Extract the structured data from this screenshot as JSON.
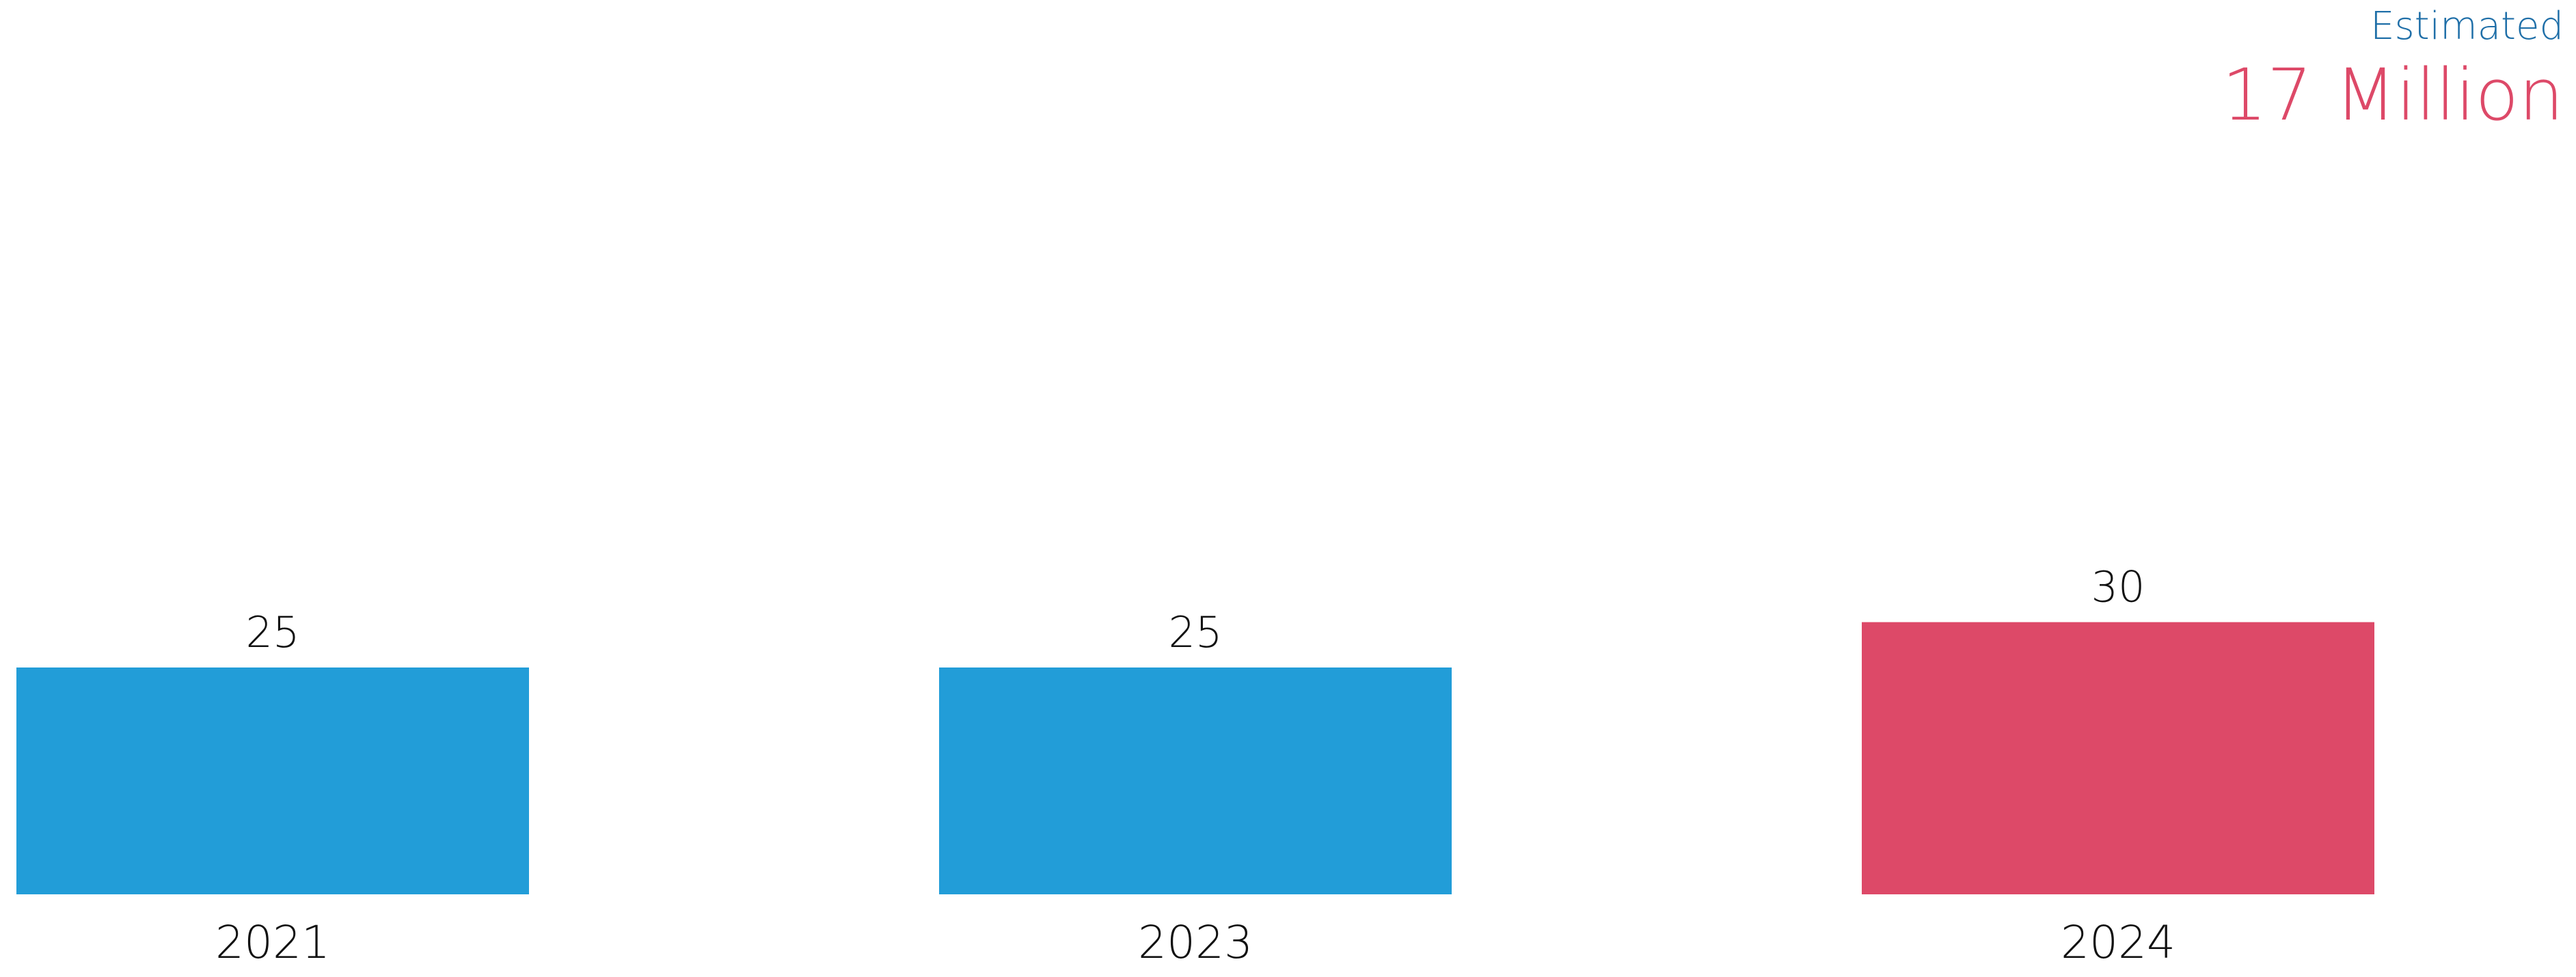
{
  "header": {
    "label": "Estimated",
    "value": "17 Million"
  },
  "colors": {
    "label": "#1f6fa8",
    "value": "#dd4968",
    "bar_default": "#229dd8",
    "bar_highlight": "#dd4968",
    "text": "#111111"
  },
  "chart_data": {
    "type": "bar",
    "categories": [
      "2021",
      "2023",
      "2024"
    ],
    "values": [
      25,
      25,
      30
    ],
    "highlight_index": 2,
    "data_labels": true,
    "grid": false,
    "axes_visible": false
  }
}
